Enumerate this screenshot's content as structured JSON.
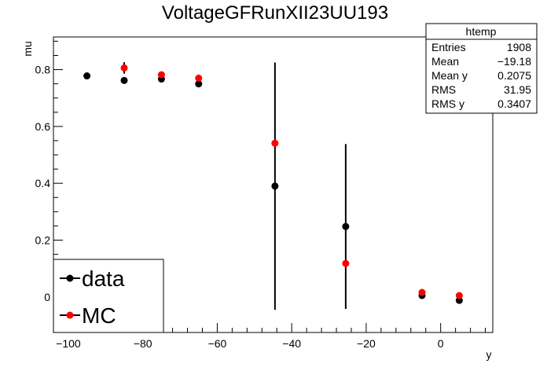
{
  "chart_data": {
    "type": "scatter",
    "title": "VoltageGFRunXII23UU193",
    "xlabel": "y",
    "ylabel": "mu",
    "xlim": [
      -104,
      14
    ],
    "ylim": [
      -0.125,
      0.915
    ],
    "x_ticks": [
      -100,
      -80,
      -60,
      -40,
      -20,
      0
    ],
    "x_tick_labels": [
      "−100",
      "−80",
      "−60",
      "−40",
      "−20",
      "0"
    ],
    "y_ticks": [
      0,
      0.2,
      0.4,
      0.6,
      0.8
    ],
    "y_tick_labels": [
      "0",
      "0.2",
      "0.4",
      "0.6",
      "0.8"
    ],
    "grid": false,
    "legend_position": "bottom-left",
    "series": [
      {
        "name": "data",
        "color": "#000000",
        "points": [
          {
            "x": -95,
            "y": 0.778,
            "err": 0.0
          },
          {
            "x": -85,
            "y": 0.762,
            "err": 0.0
          },
          {
            "x": -75,
            "y": 0.767,
            "err": 0.0
          },
          {
            "x": -65,
            "y": 0.75,
            "err": 0.0
          },
          {
            "x": -44.5,
            "y": 0.39,
            "err": 0.435
          },
          {
            "x": -25.5,
            "y": 0.248,
            "err": 0.29
          },
          {
            "x": -5,
            "y": 0.005,
            "err": 0.0
          },
          {
            "x": 5,
            "y": -0.012,
            "err": 0.0
          }
        ]
      },
      {
        "name": "MC",
        "color": "#ff0000",
        "points": [
          {
            "x": -85,
            "y": 0.806,
            "err": 0.02
          },
          {
            "x": -75,
            "y": 0.782,
            "err": 0.0
          },
          {
            "x": -65,
            "y": 0.77,
            "err": 0.0
          },
          {
            "x": -44.5,
            "y": 0.541,
            "err": 0.0
          },
          {
            "x": -25.5,
            "y": 0.118,
            "err": 0.0
          },
          {
            "x": -5,
            "y": 0.016,
            "err": 0.0
          },
          {
            "x": 5,
            "y": 0.005,
            "err": 0.0
          }
        ]
      }
    ],
    "stats_box": {
      "title": "htemp",
      "rows": [
        {
          "label": "Entries",
          "value": "1908"
        },
        {
          "label": "Mean",
          "value": "−19.18"
        },
        {
          "label": "Mean y",
          "value": "0.2075"
        },
        {
          "label": "RMS",
          "value": "31.95"
        },
        {
          "label": "RMS y",
          "value": "0.3407"
        }
      ]
    }
  }
}
